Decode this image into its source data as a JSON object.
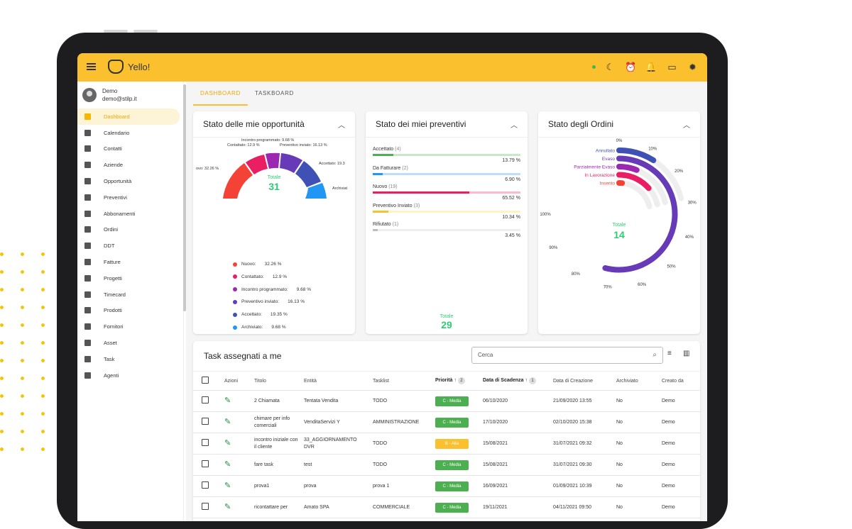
{
  "app": {
    "title": "Yello!"
  },
  "user": {
    "name": "Demo",
    "email": "demo@stilp.it"
  },
  "menu": [
    "Dashboard",
    "Calendario",
    "Contatti",
    "Aziende",
    "Opportunità",
    "Preventivi",
    "Abbonamenti",
    "Ordini",
    "DDT",
    "Fatture",
    "Progetti",
    "Timecard",
    "Prodotti",
    "Fornitori",
    "Asset",
    "Task",
    "Agenti"
  ],
  "tabs": [
    "DASHBOARD",
    "TASKBOARD"
  ],
  "cards": {
    "opp": {
      "title": "Stato delle mie opportunità",
      "total_label": "Totale",
      "total": "31",
      "callouts": [
        "Incontro programmato: 9.68 %",
        "Contattato: 12.9 %",
        "Preventivo inviato: 16.13 %",
        "ovo: 32.26 %",
        "Accettato: 19.3",
        "Archiviat"
      ],
      "legend": [
        {
          "label": "Nuovo:",
          "pct": "32.26 %",
          "color": "#f44336"
        },
        {
          "label": "Contattato:",
          "pct": "12.9 %",
          "color": "#e91e63"
        },
        {
          "label": "Incontro programmato:",
          "pct": "9.68 %",
          "color": "#9c27b0"
        },
        {
          "label": "Preventivo inviato:",
          "pct": "16.13 %",
          "color": "#673ab7"
        },
        {
          "label": "Accettato:",
          "pct": "19.35 %",
          "color": "#3f51b5"
        },
        {
          "label": "Archiviato:",
          "pct": "9.68 %",
          "color": "#2196f3"
        }
      ]
    },
    "prev": {
      "title": "Stato dei miei preventivi",
      "total_label": "Totale",
      "total": "29",
      "items": [
        {
          "label": "Accettato",
          "count": "(4)",
          "pct": "13.79 %",
          "value": 13.79,
          "color": "#4caf50",
          "track": "#c8e6c9"
        },
        {
          "label": "Da Fatturare",
          "count": "(2)",
          "pct": "6.90 %",
          "value": 6.9,
          "color": "#2196f3",
          "track": "#bbdefb"
        },
        {
          "label": "Nuovo",
          "count": "(19)",
          "pct": "65.52 %",
          "value": 65.52,
          "color": "#e91e63",
          "track": "#f8bbd0"
        },
        {
          "label": "Preventivo Inviato",
          "count": "(3)",
          "pct": "10.34 %",
          "value": 10.34,
          "color": "#fbc02d",
          "track": "#fff3c4"
        },
        {
          "label": "Rifiutato",
          "count": "(1)",
          "pct": "3.45 %",
          "value": 3.45,
          "color": "#bdbdbd",
          "track": "#eeeeee"
        }
      ]
    },
    "ord": {
      "title": "Stato degli Ordini",
      "total_label": "Totale",
      "total": "14",
      "series": [
        {
          "label": "Annullato",
          "color": "#3f51b5"
        },
        {
          "label": "Evaso",
          "color": "#673ab7"
        },
        {
          "label": "Parzialmente Evaso",
          "color": "#9c27b0"
        },
        {
          "label": "In Lavorazione",
          "color": "#e91e63"
        },
        {
          "label": "Inserito",
          "color": "#f44336"
        }
      ],
      "ticks": [
        "0%",
        "10%",
        "20%",
        "30%",
        "40%",
        "50%",
        "60%",
        "70%",
        "80%",
        "90%",
        "100%"
      ]
    }
  },
  "tasks": {
    "title": "Task assegnati a me",
    "search_placeholder": "Cerca",
    "headers": [
      "Azioni",
      "Titolo",
      "Entità",
      "Tasklist",
      "Priorità",
      "Data di Scadenza",
      "Data di Creazione",
      "Archiviato",
      "Creato da"
    ],
    "sort": {
      "priority": "2",
      "due": "1"
    },
    "rows": [
      {
        "title": "2 Chiamata",
        "entity": "Tentata Vendita",
        "list": "TODO",
        "priority": "C - Media",
        "pcolor": "#4caf50",
        "due": "06/10/2020",
        "created": "21/09/2020 13:55",
        "arch": "No",
        "by": "Demo"
      },
      {
        "title": "chimare per info comerciali",
        "entity": "VenditaServizi Y",
        "list": "AMMINISTRAZIONE",
        "priority": "C - Media",
        "pcolor": "#4caf50",
        "due": "17/10/2020",
        "created": "02/10/2020 15:38",
        "arch": "No",
        "by": "Demo"
      },
      {
        "title": "incontro iniziale con il cliente",
        "entity": "33_AGGIORNAMENTO DVR",
        "list": "TODO",
        "priority": "B - Alta",
        "pcolor": "#fbc02d",
        "due": "15/08/2021",
        "created": "31/07/2021 09:32",
        "arch": "No",
        "by": "Demo"
      },
      {
        "title": "fare task",
        "entity": "test",
        "list": "TODO",
        "priority": "C - Media",
        "pcolor": "#4caf50",
        "due": "15/08/2021",
        "created": "31/07/2021 09:30",
        "arch": "No",
        "by": "Demo"
      },
      {
        "title": "prova1",
        "entity": "prova",
        "list": "prova 1",
        "priority": "C - Media",
        "pcolor": "#4caf50",
        "due": "16/09/2021",
        "created": "01/09/2021 10:39",
        "arch": "No",
        "by": "Demo"
      },
      {
        "title": "ricontattare per",
        "entity": "Amato SPA",
        "list": "COMMERCIALE",
        "priority": "C - Media",
        "pcolor": "#4caf50",
        "due": "19/11/2021",
        "created": "04/11/2021 09:50",
        "arch": "No",
        "by": "Demo"
      }
    ]
  }
}
